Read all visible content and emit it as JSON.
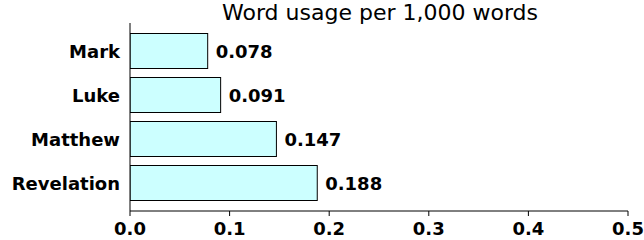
{
  "chart_data": {
    "type": "bar",
    "orientation": "horizontal",
    "title": "Word usage per 1,000 words",
    "categories": [
      "Mark",
      "Luke",
      "Matthew",
      "Revelation"
    ],
    "values": [
      0.078,
      0.091,
      0.147,
      0.188
    ],
    "color": "#ccffff",
    "xlim": [
      0,
      0.5
    ],
    "xticks": [
      {
        "value": 0,
        "label": "0.0"
      },
      0.1,
      0.2,
      0.3,
      0.4,
      0.5
    ],
    "data_labels": true,
    "grid": false
  }
}
